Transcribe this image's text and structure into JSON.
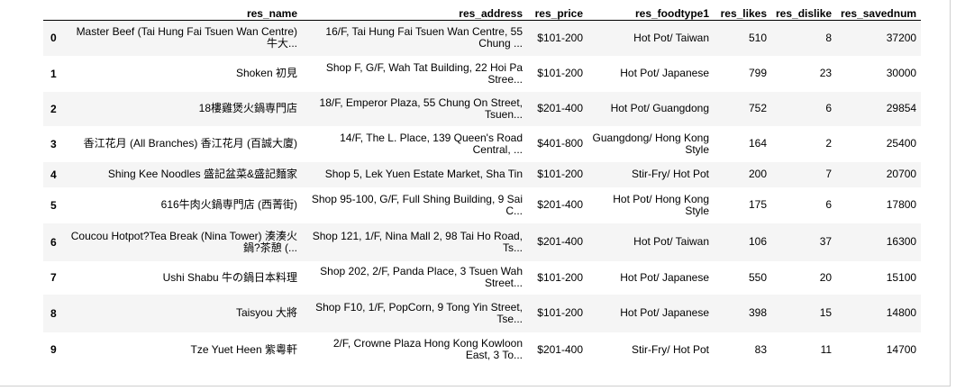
{
  "table": {
    "headers": [
      "",
      "res_name",
      "res_address",
      "res_price",
      "res_foodtype1",
      "res_likes",
      "res_dislike",
      "res_savednum"
    ],
    "rows": [
      {
        "index": "0",
        "res_name": "Master Beef (Tai Hung Fai Tsuen Wan Centre) 牛大...",
        "res_address": "16/F, Tai Hung Fai Tsuen Wan Centre, 55 Chung ...",
        "res_price": "$101-200",
        "res_foodtype1": "Hot Pot/ Taiwan",
        "res_likes": "510",
        "res_dislike": "8",
        "res_savednum": "37200"
      },
      {
        "index": "1",
        "res_name": "Shoken 初見",
        "res_address": "Shop F, G/F, Wah Tat Building, 22 Hoi Pa Stree...",
        "res_price": "$101-200",
        "res_foodtype1": "Hot Pot/ Japanese",
        "res_likes": "799",
        "res_dislike": "23",
        "res_savednum": "30000"
      },
      {
        "index": "2",
        "res_name": "18樓雞煲火鍋専門店",
        "res_address": "18/F, Emperor Plaza, 55 Chung On Street, Tsuen...",
        "res_price": "$201-400",
        "res_foodtype1": "Hot Pot/ Guangdong",
        "res_likes": "752",
        "res_dislike": "6",
        "res_savednum": "29854"
      },
      {
        "index": "3",
        "res_name": "香江花月 (All Branches) 香江花月 (百誠大廈)",
        "res_address": "14/F, The L. Place, 139 Queen's Road Central, ...",
        "res_price": "$401-800",
        "res_foodtype1": "Guangdong/ Hong Kong Style",
        "res_likes": "164",
        "res_dislike": "2",
        "res_savednum": "25400"
      },
      {
        "index": "4",
        "res_name": "Shing Kee Noodles 盛記盆菜&盛記麵家",
        "res_address": "Shop 5, Lek Yuen Estate Market, Sha Tin",
        "res_price": "$101-200",
        "res_foodtype1": "Stir-Fry/ Hot Pot",
        "res_likes": "200",
        "res_dislike": "7",
        "res_savednum": "20700"
      },
      {
        "index": "5",
        "res_name": "616牛肉火鍋専門店 (西菁街)",
        "res_address": "Shop 95-100, G/F, Full Shing Building, 9 Sai C...",
        "res_price": "$201-400",
        "res_foodtype1": "Hot Pot/ Hong Kong Style",
        "res_likes": "175",
        "res_dislike": "6",
        "res_savednum": "17800"
      },
      {
        "index": "6",
        "res_name": "Coucou Hotpot?Tea Break (Nina Tower) 湊湊火鍋?茶憩 (...",
        "res_address": "Shop 121, 1/F, Nina Mall 2, 98 Tai Ho Road, Ts...",
        "res_price": "$201-400",
        "res_foodtype1": "Hot Pot/ Taiwan",
        "res_likes": "106",
        "res_dislike": "37",
        "res_savednum": "16300"
      },
      {
        "index": "7",
        "res_name": "Ushi Shabu 牛の鍋日本料理",
        "res_address": "Shop 202, 2/F, Panda Place, 3 Tsuen Wah Street...",
        "res_price": "$101-200",
        "res_foodtype1": "Hot Pot/ Japanese",
        "res_likes": "550",
        "res_dislike": "20",
        "res_savednum": "15100"
      },
      {
        "index": "8",
        "res_name": "Taisyou 大將",
        "res_address": "Shop F10, 1/F, PopCorn, 9 Tong Yin Street, Tse...",
        "res_price": "$101-200",
        "res_foodtype1": "Hot Pot/ Japanese",
        "res_likes": "398",
        "res_dislike": "15",
        "res_savednum": "14800"
      },
      {
        "index": "9",
        "res_name": "Tze Yuet Heen 紫粵軒",
        "res_address": "2/F, Crowne Plaza Hong Kong Kowloon East, 3 To...",
        "res_price": "$201-400",
        "res_foodtype1": "Stir-Fry/ Hot Pot",
        "res_likes": "83",
        "res_dislike": "11",
        "res_savednum": "14700"
      }
    ]
  }
}
